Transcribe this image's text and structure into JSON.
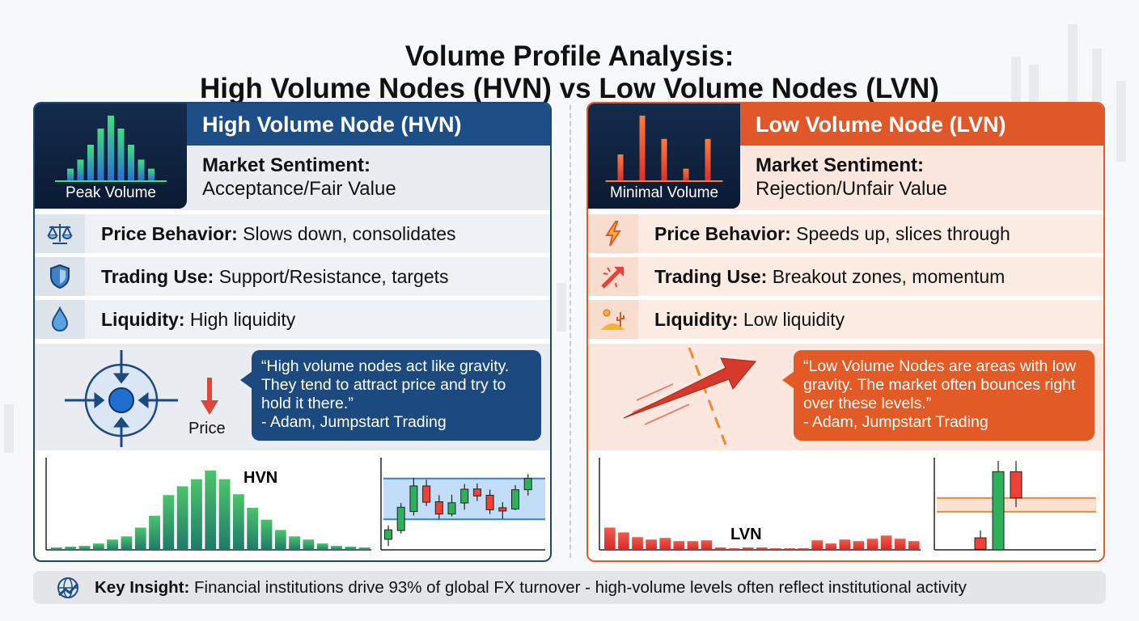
{
  "title": {
    "line1": "Volume Profile Analysis:",
    "line2": "High Volume Nodes (HVN) vs Low Volume Nodes (LVN)"
  },
  "colors": {
    "hvn_accent": "#1d4f86",
    "lvn_accent": "#e0582a",
    "green": "#2fae5b",
    "red": "#ef4136"
  },
  "hvn": {
    "header": "High Volume Node (HVN)",
    "tile_label": "Peak Volume",
    "tile_bars": [
      18,
      32,
      55,
      80,
      100,
      80,
      55,
      32,
      18
    ],
    "sentiment_label": "Market Sentiment:",
    "sentiment_value": "Acceptance/Fair Value",
    "rows": [
      {
        "icon": "scales-icon",
        "label": "Price Behavior:",
        "value": "Slows down, consolidates"
      },
      {
        "icon": "shield-icon",
        "label": "Trading Use:",
        "value": "Support/Resistance, targets"
      },
      {
        "icon": "water-drop-icon",
        "label": "Liquidity:",
        "value": "High liquidity"
      }
    ],
    "price_label": "Price",
    "quote": "“High volume nodes act like gravity. They tend to attract price and try to hold it there.”",
    "quote_author": "- Adam, Jumpstart Trading",
    "profile_label": "HVN"
  },
  "lvn": {
    "header": "Low Volume Node (LVN)",
    "tile_label": "Minimal Volume",
    "tile_bars": [
      40,
      100,
      64,
      18,
      64
    ],
    "sentiment_label": "Market Sentiment:",
    "sentiment_value": "Rejection/Unfair Value",
    "rows": [
      {
        "icon": "lightning-icon",
        "label": "Price Behavior:",
        "value": "Speeds up, slices through"
      },
      {
        "icon": "breakout-arrow-icon",
        "label": "Trading Use:",
        "value": "Breakout zones, momentum"
      },
      {
        "icon": "desert-icon",
        "label": "Liquidity:",
        "value": "Low liquidity"
      }
    ],
    "quote": "“Low Volume Nodes are areas with low gravity. The market often bounces right over these levels.”",
    "quote_author": "- Adam, Jumpstart Trading",
    "profile_label": "LVN"
  },
  "chart_data": [
    {
      "type": "bar",
      "title": "HVN",
      "values": [
        3,
        4,
        5,
        8,
        13,
        17,
        28,
        43,
        69,
        80,
        89,
        100,
        89,
        70,
        53,
        38,
        25,
        17,
        13,
        8,
        5,
        4,
        3
      ],
      "ylim": [
        0,
        110
      ]
    },
    {
      "type": "candlestick",
      "candles": [
        [
          42,
          80,
          98,
          15
        ],
        [
          77,
          170,
          187,
          65
        ],
        [
          153,
          255,
          287,
          137
        ],
        [
          255,
          190,
          280,
          175
        ],
        [
          192,
          143,
          218,
          123
        ],
        [
          143,
          188,
          220,
          133
        ],
        [
          187,
          242,
          263,
          160
        ],
        [
          243,
          215,
          265,
          195
        ],
        [
          218,
          160,
          240,
          143
        ],
        [
          168,
          155,
          190,
          123
        ],
        [
          163,
          240,
          258,
          158
        ],
        [
          240,
          285,
          302,
          217
        ]
      ],
      "range_band": [
        122,
        285
      ],
      "ylim": [
        0,
        355
      ],
      "candle_format": "open,close,high,low"
    },
    {
      "type": "bar",
      "title": "LVN",
      "values": [
        28,
        22,
        16,
        13,
        15,
        11,
        11,
        12,
        3,
        2,
        3,
        3,
        2,
        2,
        2,
        12,
        8,
        13,
        11,
        14,
        18,
        14,
        11
      ],
      "ylim": [
        0,
        110
      ]
    },
    {
      "type": "candlestick",
      "candles": [
        [
          48,
          2,
          77,
          0
        ],
        [
          0,
          312,
          355,
          0
        ],
        [
          312,
          207,
          355,
          170
        ]
      ],
      "range_band": [
        152,
        207
      ],
      "ylim": [
        0,
        355
      ],
      "candle_format": "open,close,high,low"
    }
  ],
  "insight": {
    "label": "Key Insight:",
    "text": "Financial institutions drive 93% of global FX turnover - high-volume levels often reflect institutional activity"
  }
}
